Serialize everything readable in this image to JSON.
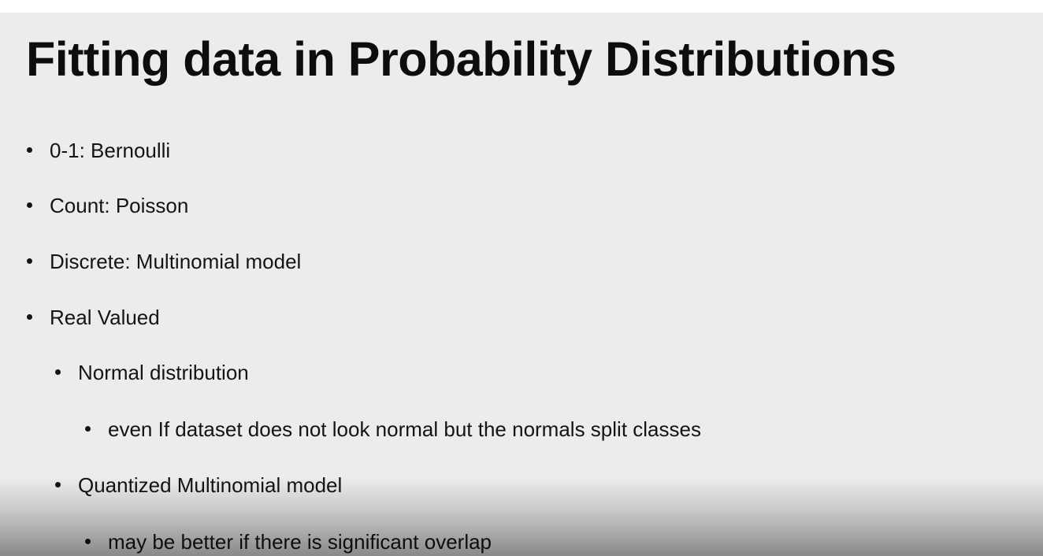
{
  "slide": {
    "title": "Fitting data in Probability Distributions",
    "bullets": [
      {
        "level": 1,
        "text": "0-1: Bernoulli"
      },
      {
        "level": 1,
        "text": "Count: Poisson"
      },
      {
        "level": 1,
        "text": "Discrete: Multinomial model"
      },
      {
        "level": 1,
        "text": "Real Valued"
      },
      {
        "level": 2,
        "text": "Normal distribution"
      },
      {
        "level": 3,
        "text": "even If dataset does not look normal but the normals split classes"
      },
      {
        "level": 2,
        "text": "Quantized Multinomial model"
      },
      {
        "level": 3,
        "text": "may be better if there is significant overlap"
      }
    ]
  }
}
